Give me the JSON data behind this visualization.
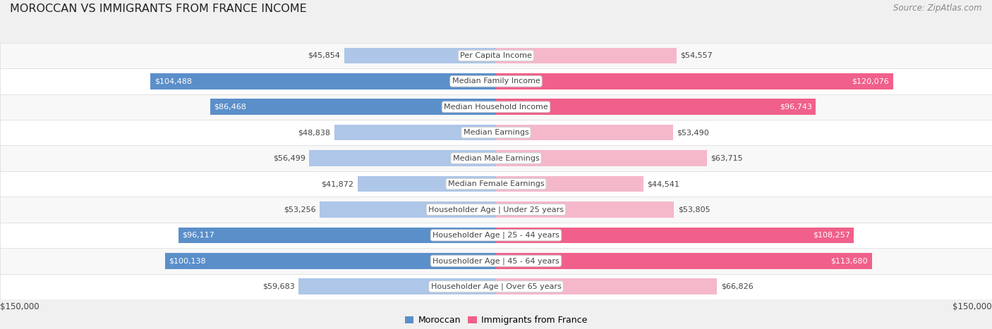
{
  "title": "MOROCCAN VS IMMIGRANTS FROM FRANCE INCOME",
  "source": "Source: ZipAtlas.com",
  "categories": [
    "Per Capita Income",
    "Median Family Income",
    "Median Household Income",
    "Median Earnings",
    "Median Male Earnings",
    "Median Female Earnings",
    "Householder Age | Under 25 years",
    "Householder Age | 25 - 44 years",
    "Householder Age | 45 - 64 years",
    "Householder Age | Over 65 years"
  ],
  "moroccan_values": [
    45854,
    104488,
    86468,
    48838,
    56499,
    41872,
    53256,
    96117,
    100138,
    59683
  ],
  "france_values": [
    54557,
    120076,
    96743,
    53490,
    63715,
    44541,
    53805,
    108257,
    113680,
    66826
  ],
  "moroccan_labels": [
    "$45,854",
    "$104,488",
    "$86,468",
    "$48,838",
    "$56,499",
    "$41,872",
    "$53,256",
    "$96,117",
    "$100,138",
    "$59,683"
  ],
  "france_labels": [
    "$54,557",
    "$120,076",
    "$96,743",
    "$53,490",
    "$63,715",
    "$44,541",
    "$53,805",
    "$108,257",
    "$113,680",
    "$66,826"
  ],
  "max_value": 150000,
  "moroccan_color_light": "#aec6e8",
  "moroccan_color_dark": "#5b8fc9",
  "france_color_light": "#f5b8cb",
  "france_color_dark": "#f0608a",
  "background_color": "#f0f0f0",
  "row_bg_even": "#f8f8f8",
  "row_bg_odd": "#ffffff",
  "row_border": "#dddddd",
  "label_color_dark": "#444444",
  "label_color_white": "#ffffff",
  "center_label_bg": "#ffffff",
  "center_label_border": "#cccccc",
  "threshold_moroccan": 75000,
  "threshold_france": 75000,
  "legend_moroccan": "Moroccan",
  "legend_france": "Immigrants from France",
  "axis_label_left": "$150,000",
  "axis_label_right": "$150,000",
  "title_fontsize": 11.5,
  "source_fontsize": 8.5,
  "bar_label_fontsize": 8,
  "category_fontsize": 8,
  "axis_fontsize": 8.5
}
